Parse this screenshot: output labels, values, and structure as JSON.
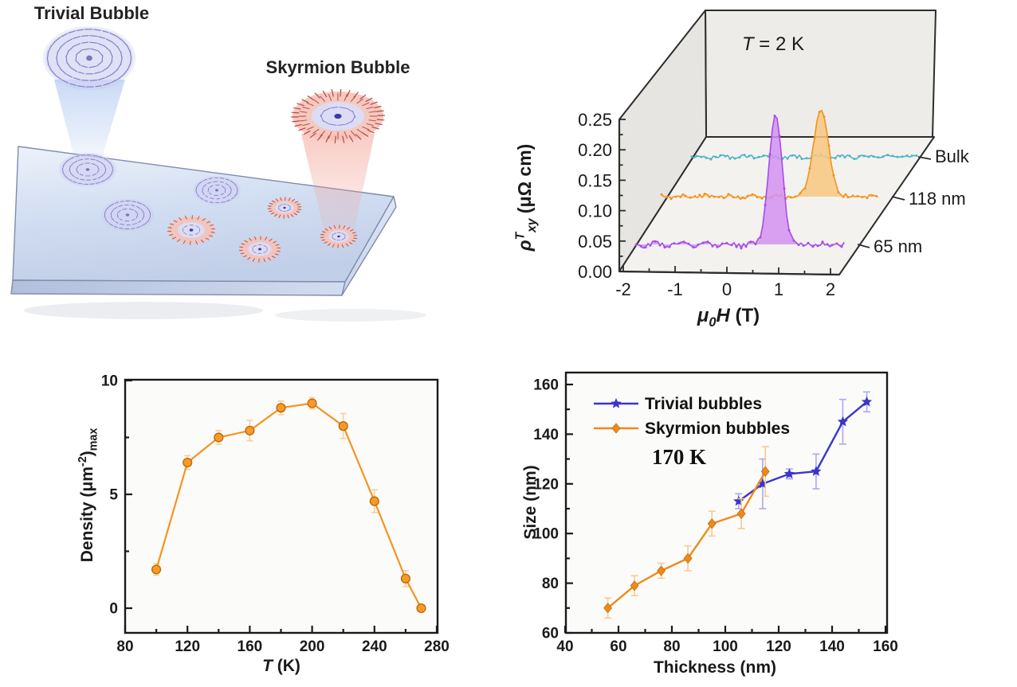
{
  "illustration": {
    "labels": {
      "trivial": "Trivial Bubble",
      "skyrmion": "Skyrmion Bubble"
    },
    "colors": {
      "trivial_arrows": "#7d7dc8",
      "skyrmion_ring": "#b8483c",
      "slab_face": "#ccd9ef",
      "cone_blue": "#94b4ec",
      "cone_pink": "#f3a296",
      "label_color": "#222222"
    }
  },
  "chart_data": [
    {
      "id": "hall_resistivity_3d",
      "type": "line",
      "projection": "3d-waterfall",
      "annotation": "T = 2 K",
      "annotation_rich": [
        {
          "t": "T",
          "i": true
        },
        {
          "t": " = 2 K"
        }
      ],
      "xlabel": "μ0H (T)",
      "xlabel_rich": [
        {
          "t": "μ",
          "i": true
        },
        {
          "t": "0",
          "sub": true,
          "i": true
        },
        {
          "t": "H",
          "i": true
        },
        {
          "t": " (T)"
        }
      ],
      "ylabel": "ρT xy (μΩ cm)",
      "ylabel_rich": [
        {
          "t": "ρ",
          "i": true
        },
        {
          "t": "T",
          "sup": true,
          "i": true
        },
        {
          "t": "xy",
          "sub": true,
          "i": true
        },
        {
          "t": " (μΩ cm)"
        }
      ],
      "x_ticks": [
        "-2",
        "-1",
        "0",
        "1",
        "2"
      ],
      "y_ticks": [
        "0.00",
        "0.05",
        "0.10",
        "0.15",
        "0.20",
        "0.25"
      ],
      "xlim": [
        -2.2,
        2.3
      ],
      "ylim": [
        0,
        0.25
      ],
      "grid": false,
      "depth_labels": [
        "Bulk",
        "118 nm",
        "65 nm"
      ],
      "series": [
        {
          "name": "Bulk",
          "color": "#4fb3c6",
          "fill": null,
          "peak_center_T": null,
          "peak_height_rho": 0.0,
          "noise_rho": 0.003
        },
        {
          "name": "118 nm",
          "color": "#f0941f",
          "fill": "#f8c87f",
          "peak_center_T": 1.0,
          "peak_height_rho": 0.14,
          "noise_rho": 0.003
        },
        {
          "name": "65 nm",
          "color": "#a64ce8",
          "fill": "#d392f2",
          "peak_center_T": 1.0,
          "peak_height_rho": 0.21,
          "noise_rho": 0.0045
        }
      ]
    },
    {
      "id": "density_vs_temperature",
      "type": "line",
      "xlabel": "T (K)",
      "xlabel_rich": [
        {
          "t": "T",
          "i": true
        },
        {
          "t": " (K)"
        }
      ],
      "ylabel": "Density (μm⁻²)max",
      "ylabel_rich": [
        {
          "t": "Density (μm"
        },
        {
          "t": "-2",
          "sup": true
        },
        {
          "t": ")"
        },
        {
          "t": "max",
          "sub": true
        }
      ],
      "x": [
        100,
        120,
        140,
        160,
        180,
        200,
        220,
        240,
        260,
        270
      ],
      "y": [
        1.7,
        6.4,
        7.5,
        7.8,
        8.8,
        9.0,
        8.0,
        4.7,
        1.3,
        0.0
      ],
      "yerr": [
        0.25,
        0.3,
        0.3,
        0.45,
        0.3,
        0.25,
        0.55,
        0.5,
        0.35,
        0.15
      ],
      "x_ticks": [
        80,
        120,
        160,
        200,
        240,
        280
      ],
      "y_ticks": [
        0,
        5,
        10
      ],
      "xlim": [
        80,
        280.5
      ],
      "ylim": [
        -1.1,
        10
      ],
      "grid": false,
      "color": "#f5941f",
      "err_color": "#f8cf9a"
    },
    {
      "id": "size_vs_thickness",
      "type": "line",
      "annotation": "170 K",
      "xlabel": "Thickness (nm)",
      "ylabel": "Size (nm)",
      "x_ticks": [
        40,
        60,
        80,
        100,
        120,
        140,
        160
      ],
      "y_ticks": [
        60,
        80,
        100,
        120,
        140,
        160
      ],
      "xlim": [
        40,
        161
      ],
      "ylim": [
        60,
        164.8
      ],
      "grid": false,
      "legend_position": "top-left",
      "series": [
        {
          "name": "Trivial bubbles",
          "marker": "star",
          "color": "#3b35cc",
          "err_color": "#a9a9ef",
          "x": [
            105,
            114,
            124,
            134,
            144,
            153
          ],
          "y": [
            113,
            120,
            124,
            125,
            145,
            153
          ],
          "yerr": [
            3,
            10,
            2,
            7,
            9,
            4
          ]
        },
        {
          "name": "Skyrmion bubbles",
          "marker": "diamond",
          "color": "#ee8a1c",
          "err_color": "#f6cb92",
          "x": [
            56,
            66,
            76,
            86,
            95,
            106,
            115
          ],
          "y": [
            70,
            79,
            85,
            90,
            104,
            108,
            125
          ],
          "yerr": [
            4,
            4,
            3,
            5,
            5,
            6,
            10
          ]
        }
      ]
    }
  ]
}
